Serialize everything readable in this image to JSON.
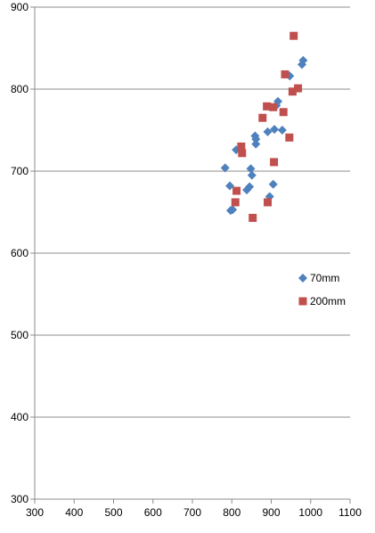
{
  "chart_data": {
    "type": "scatter",
    "title": "",
    "xlabel": "",
    "ylabel": "",
    "xlim": [
      300,
      1100
    ],
    "ylim": [
      300,
      900
    ],
    "x_ticks": [
      300,
      400,
      500,
      600,
      700,
      800,
      900,
      1000,
      1100
    ],
    "y_ticks": [
      300,
      400,
      500,
      600,
      700,
      800,
      900
    ],
    "x_tick_labels": [
      "300",
      "400",
      "500",
      "600",
      "700",
      "800",
      "900",
      "1000",
      "1100"
    ],
    "y_tick_labels": [
      "300",
      "400",
      "500",
      "600",
      "700",
      "800",
      "900"
    ],
    "grid": "horizontal",
    "legend_position": "right",
    "series": [
      {
        "name": "70mm",
        "marker": "diamond",
        "color": "#4f81bd",
        "points": [
          [
            783,
            704
          ],
          [
            795,
            682
          ],
          [
            797,
            652
          ],
          [
            802,
            653
          ],
          [
            811,
            726
          ],
          [
            821,
            726
          ],
          [
            838,
            677
          ],
          [
            845,
            681
          ],
          [
            848,
            703
          ],
          [
            851,
            695
          ],
          [
            859,
            743
          ],
          [
            861,
            739
          ],
          [
            861,
            733
          ],
          [
            891,
            748
          ],
          [
            896,
            669
          ],
          [
            905,
            684
          ],
          [
            908,
            751
          ],
          [
            913,
            780
          ],
          [
            917,
            785
          ],
          [
            928,
            750
          ],
          [
            947,
            816
          ],
          [
            978,
            830
          ],
          [
            981,
            835
          ]
        ]
      },
      {
        "name": "200mm",
        "marker": "square",
        "color": "#c0504d",
        "points": [
          [
            809,
            662
          ],
          [
            812,
            676
          ],
          [
            824,
            730
          ],
          [
            826,
            722
          ],
          [
            853,
            643
          ],
          [
            878,
            765
          ],
          [
            889,
            779
          ],
          [
            891,
            662
          ],
          [
            905,
            778
          ],
          [
            907,
            711
          ],
          [
            931,
            772
          ],
          [
            935,
            818
          ],
          [
            946,
            741
          ],
          [
            954,
            797
          ],
          [
            957,
            865
          ],
          [
            968,
            801
          ]
        ]
      }
    ]
  }
}
